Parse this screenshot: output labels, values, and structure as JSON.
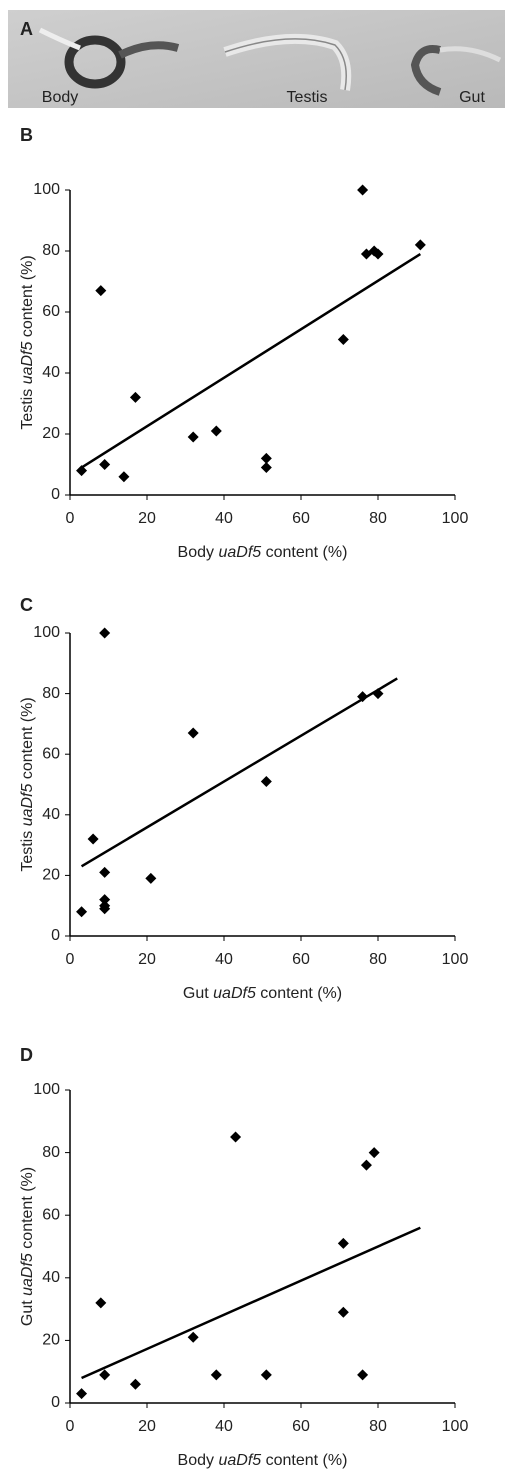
{
  "photo_panel": {
    "label": "A",
    "captions": [
      "Body",
      "Testis",
      "Gut"
    ]
  },
  "chart_data": [
    {
      "type": "scatter",
      "panel": "B",
      "xlabel": {
        "prefix": "Body",
        "italic": "uaDf5",
        "suffix": "content (%)"
      },
      "ylabel": {
        "prefix": "Testis",
        "italic": "uaDf5",
        "suffix": "content (%)"
      },
      "x": [
        3,
        8,
        9,
        14,
        17,
        32,
        38,
        51,
        51,
        71,
        76,
        77,
        79,
        80,
        91
      ],
      "y": [
        8,
        67,
        10,
        6,
        32,
        19,
        21,
        12,
        9,
        51,
        100,
        79,
        80,
        79,
        82
      ],
      "trendline": {
        "x": [
          3,
          91
        ],
        "y": [
          9,
          79
        ]
      },
      "color": "#000000",
      "xlim": [
        0,
        100
      ],
      "ylim": [
        0,
        100
      ],
      "xticks": [
        0,
        20,
        40,
        60,
        80,
        100
      ],
      "yticks": [
        0,
        20,
        40,
        60,
        80,
        100
      ]
    },
    {
      "type": "scatter",
      "panel": "C",
      "xlabel": {
        "prefix": "Gut",
        "italic": "uaDf5",
        "suffix": "content (%)"
      },
      "ylabel": {
        "prefix": "Testis",
        "italic": "uaDf5",
        "suffix": "content (%)"
      },
      "x": [
        3,
        6,
        9,
        9,
        9,
        9,
        9,
        21,
        32,
        51,
        76,
        80
      ],
      "y": [
        8,
        32,
        100,
        21,
        12,
        10,
        9,
        19,
        67,
        51,
        79,
        80
      ],
      "trendline": {
        "x": [
          3,
          85
        ],
        "y": [
          23,
          85
        ]
      },
      "color": "#000000",
      "xlim": [
        0,
        100
      ],
      "ylim": [
        0,
        100
      ],
      "xticks": [
        0,
        20,
        40,
        60,
        80,
        100
      ],
      "yticks": [
        0,
        20,
        40,
        60,
        80,
        100
      ]
    },
    {
      "type": "scatter",
      "panel": "D",
      "xlabel": {
        "prefix": "Body",
        "italic": "uaDf5",
        "suffix": "content (%)"
      },
      "ylabel": {
        "prefix": "Gut",
        "italic": "uaDf5",
        "suffix": "content (%)"
      },
      "x": [
        3,
        8,
        9,
        17,
        32,
        38,
        43,
        51,
        71,
        71,
        76,
        77,
        79
      ],
      "y": [
        3,
        32,
        9,
        6,
        21,
        9,
        85,
        9,
        51,
        29,
        9,
        76,
        80
      ],
      "trendline": {
        "x": [
          3,
          91
        ],
        "y": [
          8,
          56
        ]
      },
      "color": "#000000",
      "xlim": [
        0,
        100
      ],
      "ylim": [
        0,
        100
      ],
      "xticks": [
        0,
        20,
        40,
        60,
        80,
        100
      ],
      "yticks": [
        0,
        20,
        40,
        60,
        80,
        100
      ]
    }
  ]
}
